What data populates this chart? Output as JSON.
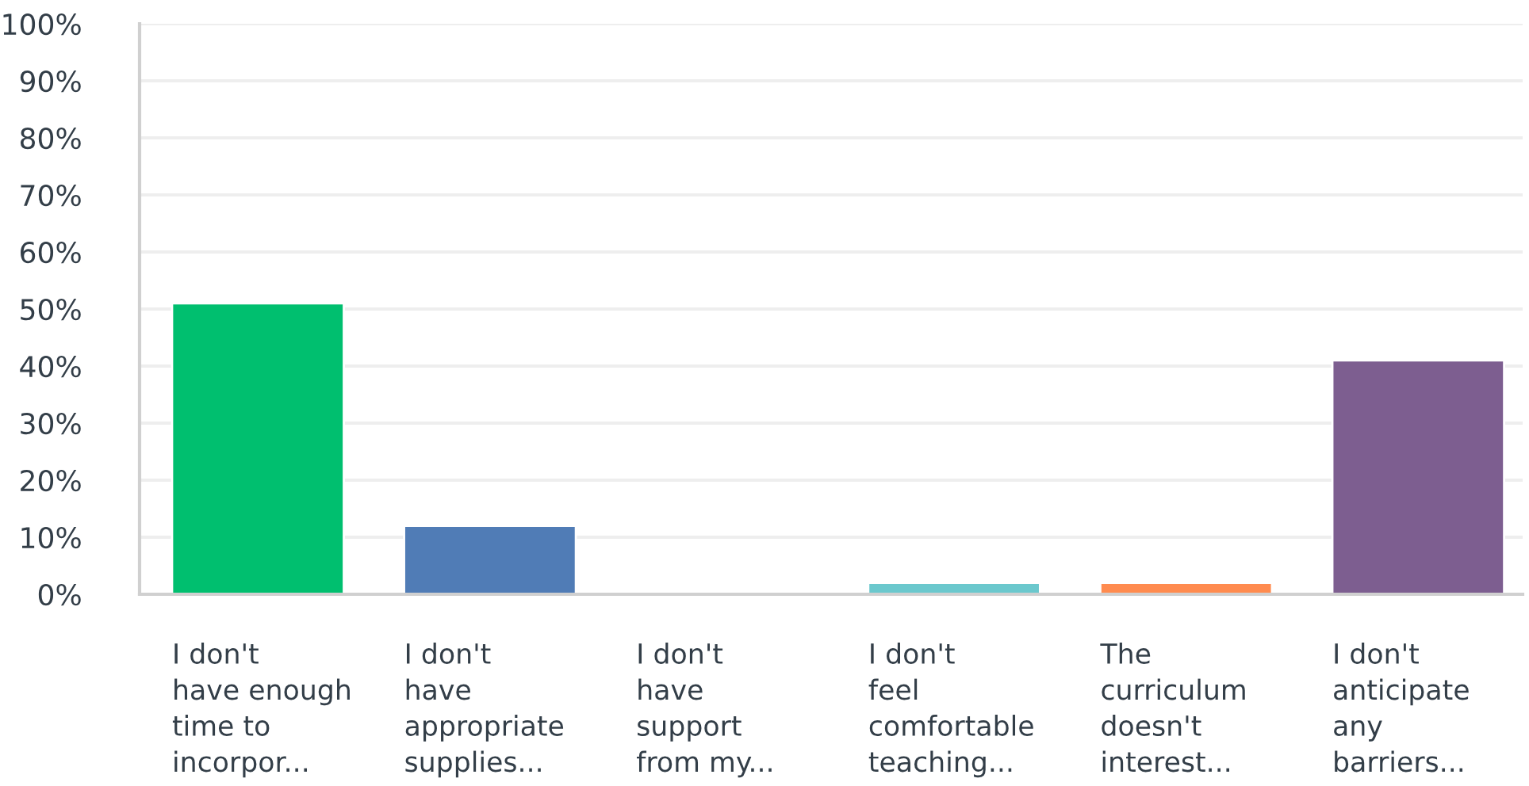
{
  "chart_data": {
    "type": "bar",
    "categories": [
      "I don't\nhave enough\ntime to\nincorpor...",
      "I don't\nhave\nappropriate\nsupplies...",
      "I don't\nhave\nsupport\nfrom my...",
      "I don't\nfeel\ncomfortable\nteaching...",
      "The\ncurriculum\ndoesn't\ninterest...",
      "I don't\nanticipate\nany\nbarriers..."
    ],
    "values": [
      51,
      12,
      0,
      2,
      2,
      41
    ],
    "colors": [
      "#00bf6f",
      "#507cb6",
      null,
      "#6bc8cd",
      "#ff8b4f",
      "#7d5e90"
    ],
    "ylim": [
      0,
      100
    ],
    "yticks": [
      {
        "value": 0,
        "label": "0%"
      },
      {
        "value": 10,
        "label": "10%"
      },
      {
        "value": 20,
        "label": "20%"
      },
      {
        "value": 30,
        "label": "30%"
      },
      {
        "value": 40,
        "label": "40%"
      },
      {
        "value": 50,
        "label": "50%"
      },
      {
        "value": 60,
        "label": "60%"
      },
      {
        "value": 70,
        "label": "70%"
      },
      {
        "value": 80,
        "label": "80%"
      },
      {
        "value": 90,
        "label": "90%"
      },
      {
        "value": 100,
        "label": "100%"
      }
    ],
    "grid": "y",
    "legend": false
  }
}
